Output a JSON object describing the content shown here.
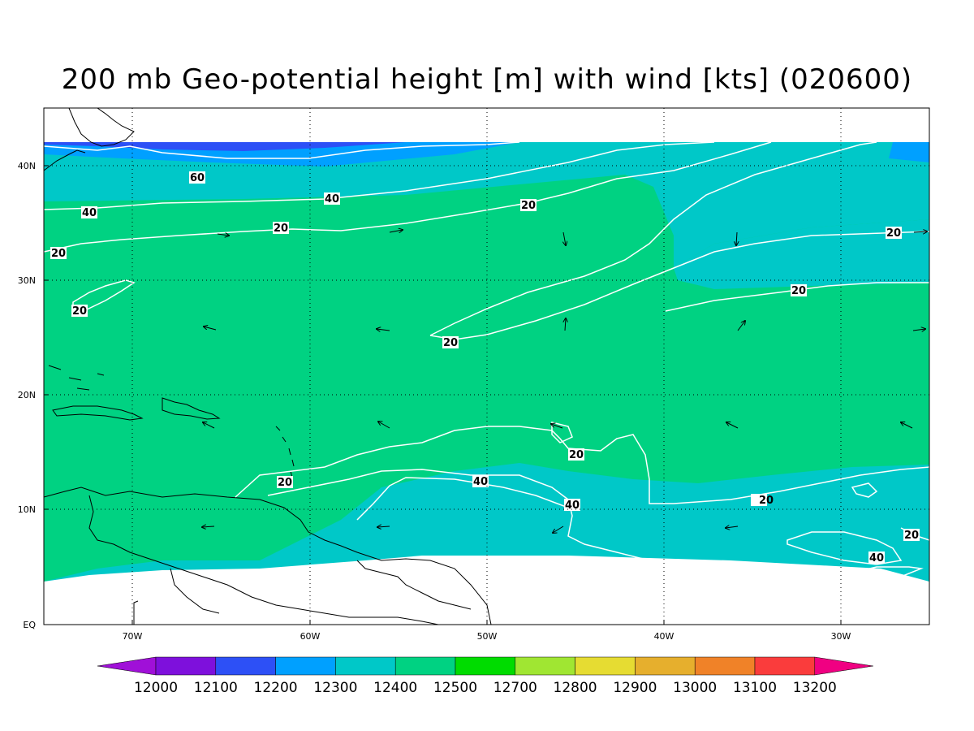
{
  "title": "200 mb Geo-potential height [m] with wind [kts] (020600)",
  "axes": {
    "x_ticks": [
      "70W",
      "60W",
      "50W",
      "40W",
      "30W"
    ],
    "y_ticks": [
      "EQ",
      "10N",
      "20N",
      "30N",
      "40N"
    ],
    "lon_range": [
      "75W",
      "25W"
    ],
    "lat_range": [
      "EQ",
      "45N"
    ],
    "grid": "dotted"
  },
  "colorbar": {
    "levels": [
      "12000",
      "12100",
      "12200",
      "12300",
      "12400",
      "12500",
      "12700",
      "12800",
      "12900",
      "13000",
      "13100",
      "13200"
    ],
    "colors": [
      "#a010d8",
      "#7e10dc",
      "#2d50f6",
      "#00a0ff",
      "#00c8c8",
      "#00d282",
      "#00dc00",
      "#a0e632",
      "#e6dc32",
      "#e6af2d",
      "#f08228",
      "#fa3c3c",
      "#f00082"
    ]
  },
  "fill_colors": {
    "band_12200": "#2d50f6",
    "band_12300": "#00a0ff",
    "band_12400": "#00c8c8",
    "band_12500": "#00d282"
  },
  "contour_labels": [
    "60",
    "40",
    "40",
    "20",
    "20",
    "20",
    "20",
    "20",
    "20",
    "20",
    "40",
    "40",
    "20",
    "20",
    "40"
  ],
  "wind_contour_color": "#ffffff"
}
